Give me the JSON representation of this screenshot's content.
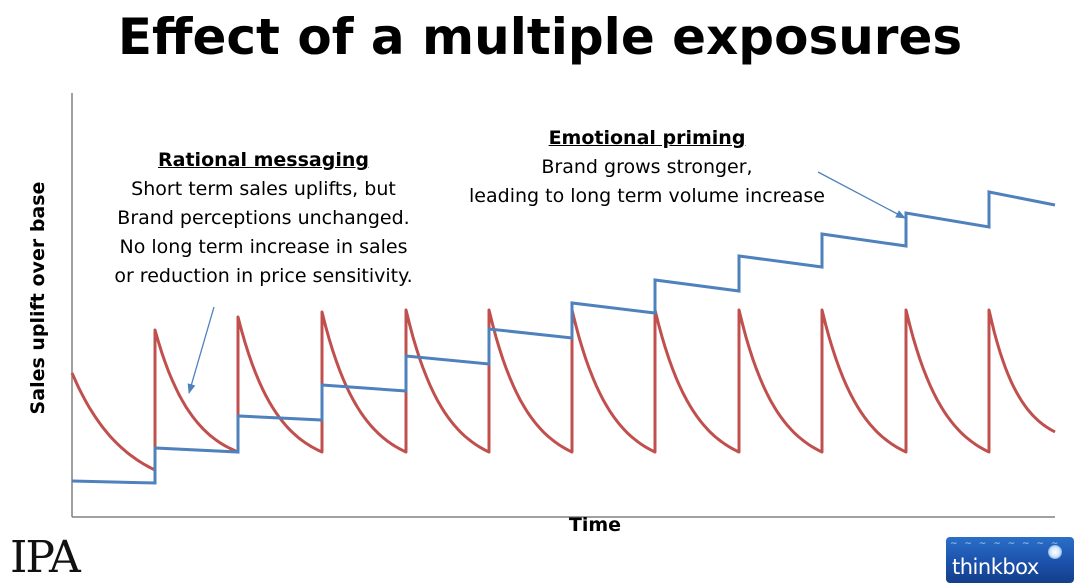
{
  "title": "Effect of a multiple exposures",
  "y_axis_label": "Sales uplift over base",
  "x_axis_label": "Time",
  "annotations": {
    "rational": {
      "heading": "Rational messaging",
      "lines": [
        "Short term sales uplifts, but",
        "Brand perceptions unchanged.",
        "No long term increase in sales",
        "or reduction in price sensitivity."
      ]
    },
    "emotional": {
      "heading": "Emotional priming",
      "lines": [
        "Brand grows stronger,",
        "leading to long term volume increase"
      ]
    }
  },
  "logos": {
    "ipa": "IPA",
    "thinkbox": "thinkbox"
  },
  "colors": {
    "rational_line": "#c0504d",
    "emotional_line": "#4f81bd",
    "arrow": "#4f81bd",
    "axis": "#808080"
  }
}
